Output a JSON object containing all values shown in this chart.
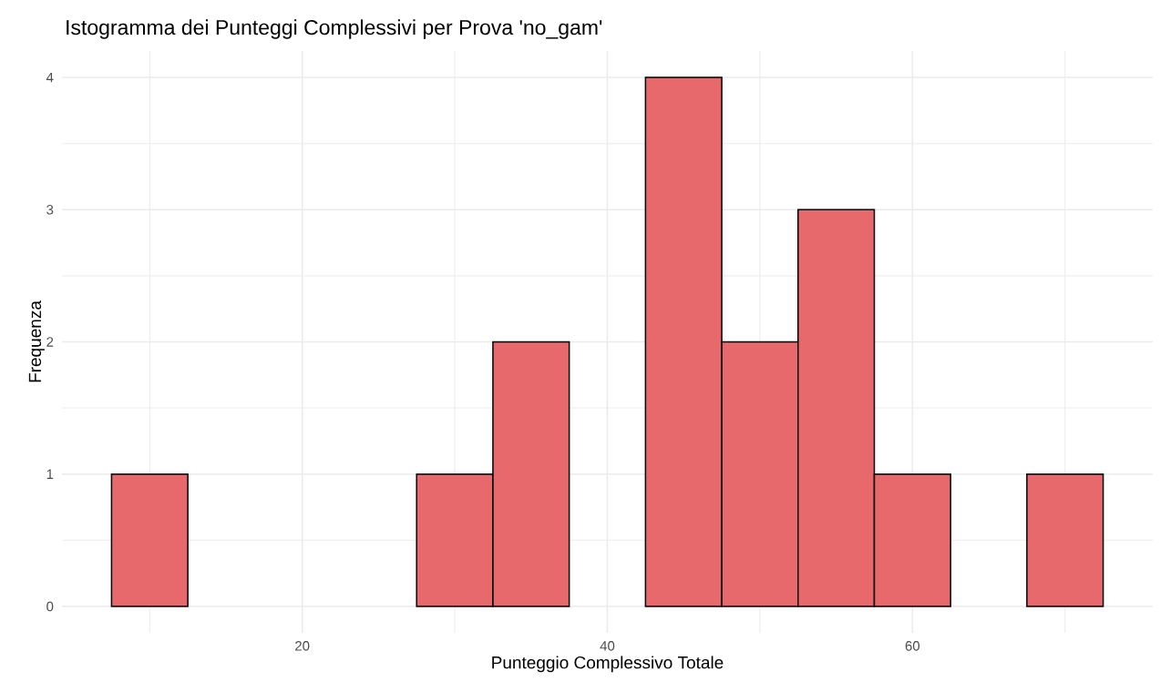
{
  "chart_data": {
    "type": "histogram",
    "title": "Istogramma dei Punteggi Complessivi per Prova 'no_gam'",
    "xlabel": "Punteggio Complessivo Totale",
    "ylabel": "Frequenza",
    "bins": [
      7.5,
      12.5,
      17.5,
      22.5,
      27.5,
      32.5,
      37.5,
      42.5,
      47.5,
      52.5,
      57.5,
      62.5,
      67.5,
      72.5
    ],
    "values": [
      1,
      0,
      0,
      0,
      1,
      2,
      0,
      4,
      2,
      3,
      1,
      0,
      1
    ],
    "color": "#e8696c",
    "xlim": [
      4.25,
      75.75
    ],
    "ylim": [
      -0.2,
      4.2
    ],
    "xticks": [
      20,
      40,
      60
    ],
    "yticks": [
      0,
      1,
      2,
      3,
      4
    ],
    "grid": true
  }
}
